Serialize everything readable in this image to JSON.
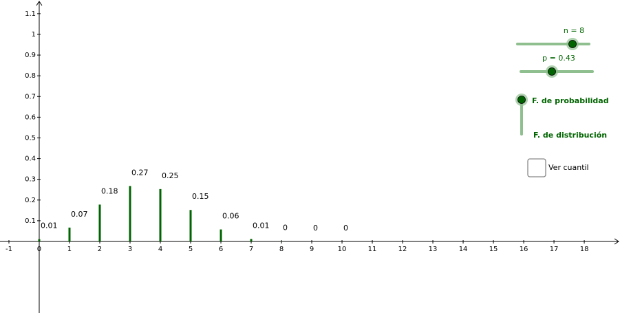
{
  "chart_data": {
    "type": "stem",
    "x": [
      0,
      1,
      2,
      3,
      4,
      5,
      6,
      7,
      8,
      9,
      10
    ],
    "values": [
      0.011,
      0.067,
      0.178,
      0.268,
      0.253,
      0.152,
      0.058,
      0.012,
      0.001,
      0,
      0
    ],
    "value_labels": [
      "0.01",
      "0.07",
      "0.18",
      "0.27",
      "0.25",
      "0.15",
      "0.06",
      "0.01",
      "0",
      "0",
      "0"
    ],
    "color": "#006400",
    "xlim": [
      -1.295,
      19.18
    ],
    "ylim": [
      -0.3455,
      1.166
    ],
    "xticks": [
      -1,
      0,
      1,
      2,
      3,
      4,
      5,
      6,
      7,
      8,
      9,
      10,
      11,
      12,
      13,
      14,
      15,
      16,
      17,
      18
    ],
    "yticks": [
      0.1,
      0.2,
      0.3,
      0.4,
      0.5,
      0.6,
      0.7,
      0.8,
      0.9,
      1,
      1.1
    ]
  },
  "controls": {
    "n_slider": "n = 8",
    "p_slider": "p = 0.43",
    "options": [
      "F. de probabilidad",
      "F. de distribución"
    ],
    "checkbox": "Ver cuantil"
  }
}
